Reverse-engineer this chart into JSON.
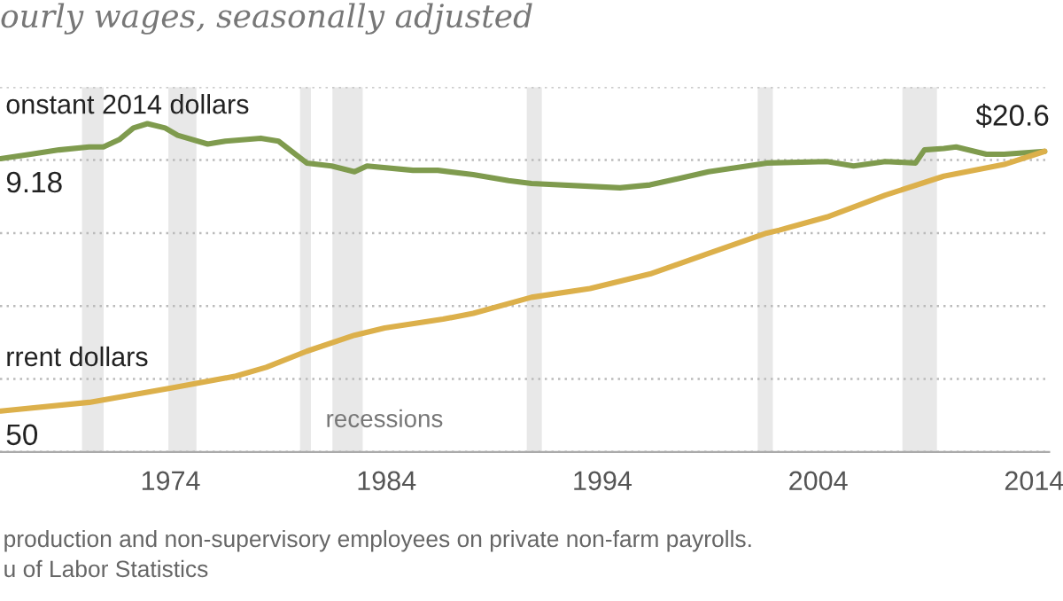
{
  "chart_data": {
    "type": "line",
    "subtitle": "ourly wages, seasonally adjusted",
    "xlim": [
      1966.1,
      2014.7
    ],
    "xticks": [
      1974,
      1984,
      1994,
      2004,
      2014
    ],
    "ylim": [
      0,
      25
    ],
    "yticks": [
      {
        "value": 0,
        "label": null
      },
      {
        "value": 5,
        "label": null
      },
      {
        "value": 10,
        "label": null
      },
      {
        "value": 15,
        "label": null
      },
      {
        "value": 20,
        "label": null
      },
      {
        "value": 25,
        "label": null
      }
    ],
    "grid": "y",
    "tick_labels": "x",
    "series": [
      {
        "name": "onstant 2014 dollars",
        "color": "#7f9b4e",
        "x": [
          1966.13,
          1967.52,
          1968.84,
          1970.23,
          1970.89,
          1971.62,
          1972.28,
          1972.93,
          1973.75,
          1974.33,
          1975.72,
          1976.54,
          1978.18,
          1979.0,
          1980.31,
          1981.46,
          1982.52,
          1983.1,
          1985.23,
          1986.38,
          1988.02,
          1989.66,
          1990.72,
          1994.82,
          1996.21,
          1998.92,
          2001.62,
          2004.41,
          2005.64,
          2007.11,
          2008.51,
          2008.92,
          2009.82,
          2010.39,
          2011.79,
          2012.61,
          2014.49
        ],
        "values": [
          20.1,
          20.4,
          20.7,
          20.9,
          20.9,
          21.4,
          22.2,
          22.5,
          22.2,
          21.7,
          21.1,
          21.3,
          21.5,
          21.3,
          19.8,
          19.6,
          19.2,
          19.6,
          19.3,
          19.3,
          19.0,
          18.6,
          18.4,
          18.1,
          18.3,
          19.2,
          19.8,
          19.9,
          19.6,
          19.9,
          19.8,
          20.7,
          20.8,
          20.9,
          20.4,
          20.4,
          20.6
        ],
        "value_labels": [
          null,
          null,
          null,
          null,
          null,
          null,
          null,
          null,
          null,
          null,
          null,
          null,
          null,
          null,
          null,
          null,
          null,
          null,
          null,
          null,
          null,
          null,
          null,
          null,
          null,
          null,
          null,
          null,
          null,
          null,
          null,
          null,
          null,
          null,
          null,
          null,
          "$20.6"
        ]
      },
      {
        "name": "rrent dollars",
        "color": "#dcb04b",
        "x": [
          1966.13,
          1970.23,
          1974.08,
          1977.03,
          1978.43,
          1980.31,
          1982.52,
          1983.92,
          1986.62,
          1988.02,
          1990.72,
          1993.43,
          1996.21,
          1998.92,
          2001.62,
          2002.2,
          2004.41,
          2007.11,
          2009.82,
          2012.61,
          2014.49
        ],
        "values": [
          2.8,
          3.4,
          4.4,
          5.2,
          5.8,
          6.9,
          8.0,
          8.5,
          9.1,
          9.5,
          10.6,
          11.2,
          12.2,
          13.6,
          15.0,
          15.2,
          16.1,
          17.6,
          18.9,
          19.7,
          20.6
        ]
      }
    ],
    "bands": [
      {
        "axis": "x",
        "from": 1969.9,
        "to": 1970.9,
        "color": "#e8e8e8"
      },
      {
        "axis": "x",
        "from": 1973.9,
        "to": 1975.2,
        "color": "#e8e8e8"
      },
      {
        "axis": "x",
        "from": 1980.0,
        "to": 1980.5,
        "color": "#e8e8e8",
        "label": "recessions"
      },
      {
        "axis": "x",
        "from": 1981.5,
        "to": 1982.9,
        "color": "#e8e8e8"
      },
      {
        "axis": "x",
        "from": 1990.5,
        "to": 1991.2,
        "color": "#e8e8e8"
      },
      {
        "axis": "x",
        "from": 2001.2,
        "to": 2001.9,
        "color": "#e8e8e8"
      },
      {
        "axis": "x",
        "from": 2007.9,
        "to": 2009.5,
        "color": "#e8e8e8"
      }
    ],
    "annotations": [
      "9.18",
      "50",
      "production and non-supervisory employees on private non-farm payrolls.",
      "u of Labor Statistics"
    ],
    "legend": false,
    "line_style": "solid"
  }
}
